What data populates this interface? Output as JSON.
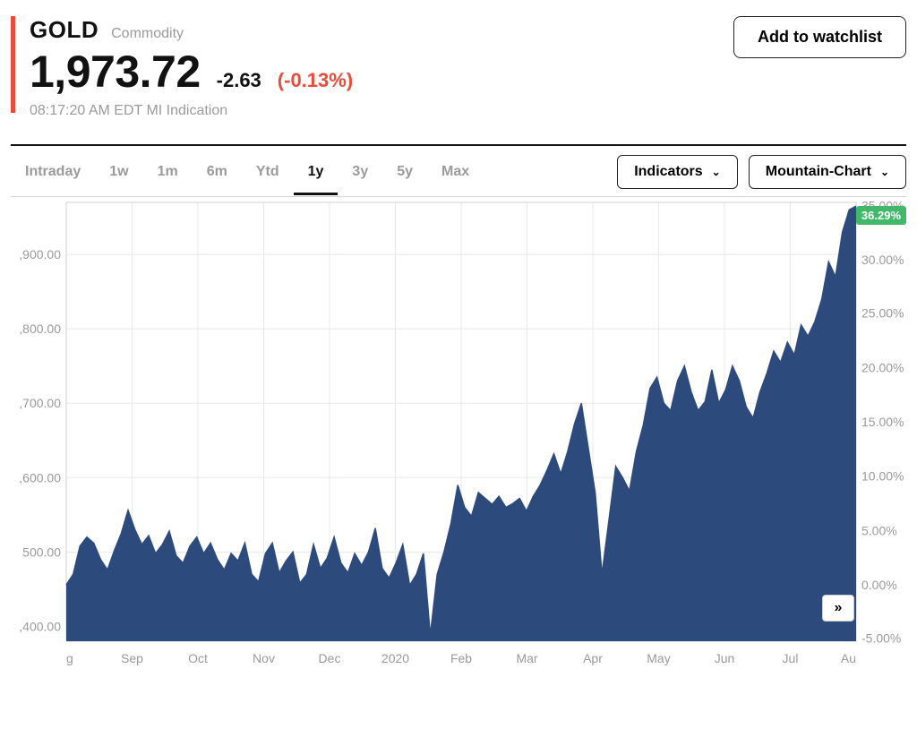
{
  "header": {
    "symbol": "GOLD",
    "asset_type": "Commodity",
    "price": "1,973.72",
    "change_abs": "-2.63",
    "change_pct": "(-0.13%)",
    "change_color": "#e84c3d",
    "accent_color": "#e84c3d",
    "timestamp": "08:17:20 AM EDT MI Indication",
    "watchlist_label": "Add to watchlist"
  },
  "controls": {
    "timeframes": [
      "Intraday",
      "1w",
      "1m",
      "6m",
      "Ytd",
      "1y",
      "3y",
      "5y",
      "Max"
    ],
    "active_timeframe": "1y",
    "indicators_label": "Indicators",
    "chart_type_label": "Mountain-Chart"
  },
  "chart": {
    "type": "area",
    "fill_color": "#2c4a7c",
    "stroke_color": "#2c4a7c",
    "background_color": "#ffffff",
    "grid_color": "#e8e8e8",
    "y_left": {
      "min": 1380,
      "max": 1970,
      "ticks": [
        {
          "v": 1400,
          "label": ",400.00"
        },
        {
          "v": 1500,
          "label": "500.00"
        },
        {
          "v": 1600,
          "label": ",600.00"
        },
        {
          "v": 1700,
          "label": ",700.00"
        },
        {
          "v": 1800,
          "label": ",800.00"
        },
        {
          "v": 1900,
          "label": ",900.00"
        }
      ]
    },
    "y_right": {
      "ticks": [
        {
          "v": 1384,
          "label": "-5.00%"
        },
        {
          "v": 1456,
          "label": "0.00%"
        },
        {
          "v": 1529,
          "label": "5.00%"
        },
        {
          "v": 1602,
          "label": "10.00%"
        },
        {
          "v": 1675,
          "label": "15.00%"
        },
        {
          "v": 1748,
          "label": "20.00%"
        },
        {
          "v": 1821,
          "label": "25.00%"
        },
        {
          "v": 1893,
          "label": "30.00%"
        },
        {
          "v": 1966,
          "label": "35.00%"
        }
      ]
    },
    "x_labels": [
      "g",
      "Sep",
      "Oct",
      "Nov",
      "Dec",
      "2020",
      "Feb",
      "Mar",
      "Apr",
      "May",
      "Jun",
      "Jul",
      "Au"
    ],
    "badge": {
      "label": "36.29%",
      "bg": "#42b86a"
    },
    "series": [
      1456,
      1470,
      1508,
      1520,
      1512,
      1490,
      1476,
      1502,
      1525,
      1556,
      1530,
      1510,
      1522,
      1498,
      1510,
      1528,
      1495,
      1485,
      1508,
      1520,
      1498,
      1512,
      1490,
      1476,
      1498,
      1488,
      1512,
      1470,
      1460,
      1498,
      1512,
      1472,
      1488,
      1500,
      1458,
      1470,
      1510,
      1478,
      1492,
      1520,
      1485,
      1472,
      1498,
      1482,
      1500,
      1532,
      1478,
      1465,
      1485,
      1510,
      1455,
      1470,
      1498,
      1388,
      1470,
      1500,
      1538,
      1590,
      1560,
      1548,
      1580,
      1572,
      1564,
      1575,
      1560,
      1565,
      1572,
      1555,
      1575,
      1590,
      1610,
      1632,
      1605,
      1635,
      1672,
      1700,
      1640,
      1580,
      1470,
      1542,
      1615,
      1600,
      1582,
      1635,
      1670,
      1720,
      1735,
      1700,
      1690,
      1730,
      1750,
      1715,
      1690,
      1702,
      1745,
      1700,
      1718,
      1750,
      1730,
      1695,
      1680,
      1715,
      1740,
      1770,
      1755,
      1782,
      1765,
      1805,
      1790,
      1810,
      1840,
      1890,
      1870,
      1930,
      1960,
      1965
    ]
  }
}
